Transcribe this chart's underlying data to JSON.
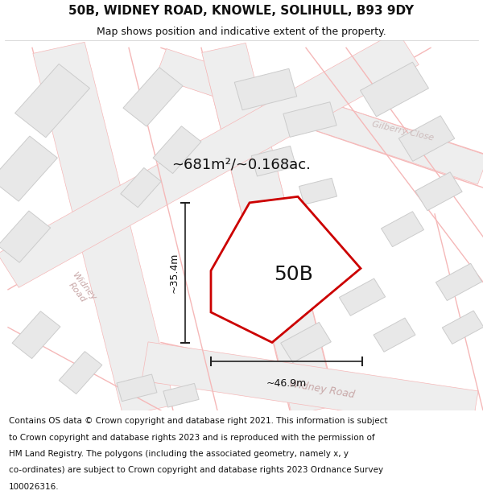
{
  "title_line1": "50B, WIDNEY ROAD, KNOWLE, SOLIHULL, B93 9DY",
  "title_line2": "Map shows position and indicative extent of the property.",
  "footer_lines": [
    "Contains OS data © Crown copyright and database right 2021. This information is subject",
    "to Crown copyright and database rights 2023 and is reproduced with the permission of",
    "HM Land Registry. The polygons (including the associated geometry, namely x, y",
    "co-ordinates) are subject to Crown copyright and database rights 2023 Ordnance Survey",
    "100026316."
  ],
  "area_text": "~681m²/~0.168ac.",
  "label_50B": "50B",
  "dim_width": "~46.9m",
  "dim_height": "~35.4m",
  "background_color": "#ffffff",
  "map_bg_color": "#f7f7f7",
  "road_line_color": "#f5b8b8",
  "road_fill_color": "#eeeeee",
  "plot_outline_color": "#cc0000",
  "building_fill": "#e8e8e8",
  "building_edge": "#cccccc",
  "road_label_color": "#c8a8a8",
  "gilberry_label_color": "#ccbbbb",
  "title_fontsize": 11,
  "subtitle_fontsize": 9,
  "footer_fontsize": 7.5,
  "area_fontsize": 13,
  "label_fontsize": 18,
  "dim_fontsize": 9,
  "gilberry_close_text": "Gilberry Close",
  "widney_road_text1": "Widney\nRoad",
  "widney_road_text2": "Widney Road"
}
